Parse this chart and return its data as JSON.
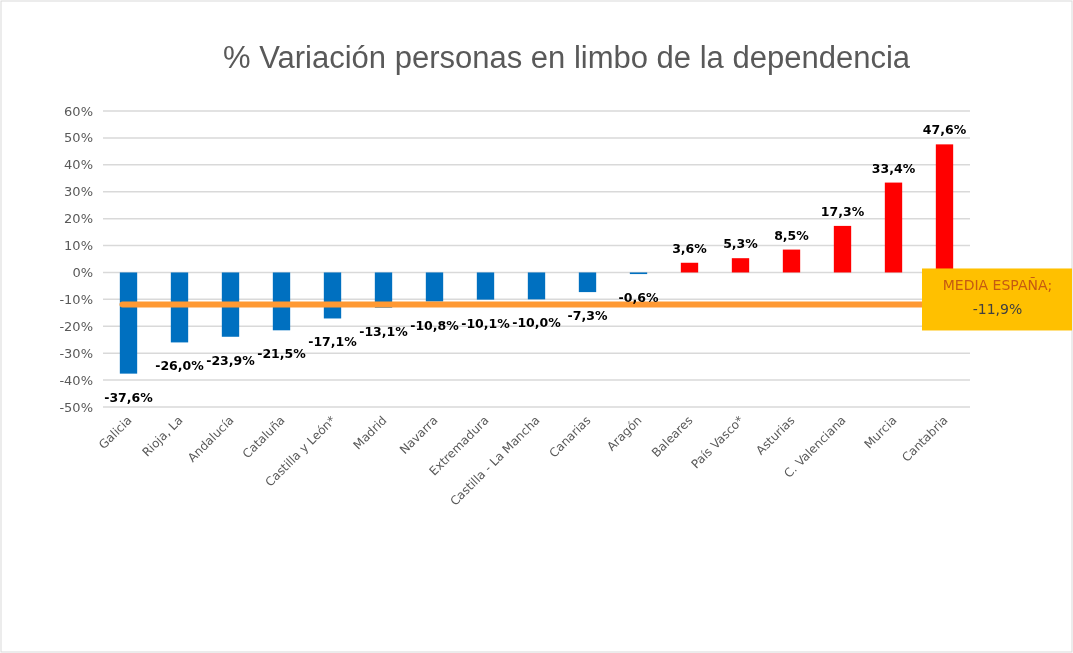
{
  "chart_data": {
    "type": "bar",
    "title": "% Variación personas en limbo de la dependencia",
    "categories": [
      "Galicia",
      "Rioja, La",
      "Andalucía",
      "Cataluña",
      "Castilla y León*",
      "Madrid",
      "Navarra",
      "Extremadura",
      "Castilla - La Mancha",
      "Canarias",
      "Aragón",
      "Baleares",
      "País Vasco*",
      "Asturias",
      "C. Valenciana",
      "Murcia",
      "Cantabria"
    ],
    "values": [
      -37.6,
      -26.0,
      -23.9,
      -21.5,
      -17.1,
      -13.1,
      -10.8,
      -10.1,
      -10.0,
      -7.3,
      -0.6,
      3.6,
      5.3,
      8.5,
      17.3,
      33.4,
      47.6
    ],
    "value_labels": [
      "-37,6%",
      "-26,0%",
      "-23,9%",
      "-21,5%",
      "-17,1%",
      "-13,1%",
      "-10,8%",
      "-10,1%",
      "-10,0%",
      "-7,3%",
      "-0,6%",
      "3,6%",
      "5,3%",
      "8,5%",
      "17,3%",
      "33,4%",
      "47,6%"
    ],
    "colors": [
      "#0070c0",
      "#0070c0",
      "#0070c0",
      "#0070c0",
      "#0070c0",
      "#0070c0",
      "#0070c0",
      "#0070c0",
      "#0070c0",
      "#0070c0",
      "#0070c0",
      "#ff0000",
      "#ff0000",
      "#ff0000",
      "#ff0000",
      "#ff0000",
      "#ff0000"
    ],
    "ylim": [
      -50,
      60
    ],
    "yticks": [
      {
        "value": -50,
        "label": "-50%"
      },
      {
        "value": -40,
        "label": "-40%"
      },
      {
        "value": -30,
        "label": "-30%"
      },
      {
        "value": -20,
        "label": "-20%"
      },
      {
        "value": -10,
        "label": "-10%"
      },
      {
        "value": 0,
        "label": "0%"
      },
      {
        "value": 10,
        "label": "10%"
      },
      {
        "value": 20,
        "label": "20%"
      },
      {
        "value": 30,
        "label": "30%"
      },
      {
        "value": 40,
        "label": "40%"
      },
      {
        "value": 50,
        "label": "50%"
      },
      {
        "value": 60,
        "label": "60%"
      }
    ],
    "grid": "y",
    "ref_lines": [
      {
        "axis": "y",
        "value": -11.9,
        "label": "MEDIA ESPAÑA; -11,9%",
        "color": "#ff9933"
      }
    ]
  }
}
